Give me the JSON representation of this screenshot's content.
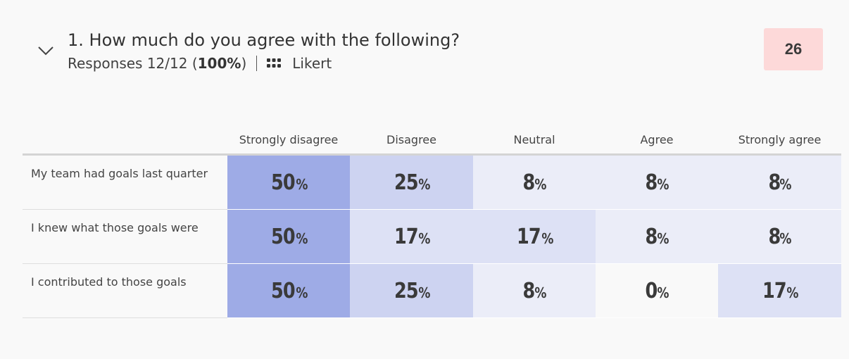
{
  "question": {
    "number": "1.",
    "title": "How much do you agree with the following?",
    "responses_prefix": "Responses 12/12 (",
    "responses_percent": "100%",
    "responses_suffix": ")",
    "type_label": "Likert",
    "badge_value": "26"
  },
  "colors": {
    "background": "#f9f9f9",
    "badge_bg": "#fdd9d9",
    "heat_max": "#9eabe6",
    "heat_high": "#cdd3f1",
    "heat_mid": "#dde1f5",
    "heat_low": "#ebedf8",
    "heat_none": "#f9f9f9"
  },
  "table": {
    "columns": [
      "Strongly disagree",
      "Disagree",
      "Neutral",
      "Agree",
      "Strongly agree"
    ],
    "rows": [
      {
        "label": "My team had goals last quarter",
        "values": [
          50,
          25,
          8,
          8,
          8
        ]
      },
      {
        "label": "I knew what those goals were",
        "values": [
          50,
          17,
          17,
          8,
          8
        ]
      },
      {
        "label": "I contributed to those goals",
        "values": [
          50,
          25,
          8,
          0,
          17
        ]
      }
    ]
  },
  "icons": {
    "toggle": "chevron-down-icon",
    "question_type": "grid-dots-icon"
  }
}
